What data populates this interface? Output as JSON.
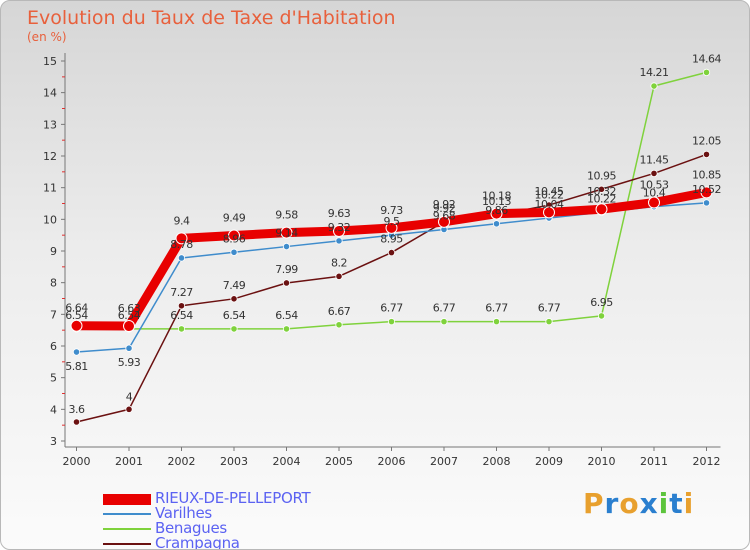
{
  "chart_data": {
    "type": "line",
    "title": "Evolution du Taux de Taxe d'Habitation",
    "subtitle": "(en %)",
    "categories": [
      "2000",
      "2001",
      "2002",
      "2003",
      "2004",
      "2005",
      "2006",
      "2007",
      "2008",
      "2009",
      "2010",
      "2011",
      "2012"
    ],
    "ylim": [
      3,
      15
    ],
    "yticks": [
      "3",
      "4",
      "5",
      "6",
      "7",
      "8",
      "9",
      "10",
      "11",
      "12",
      "13",
      "14",
      "15"
    ],
    "grid": false,
    "legend_position": "bottom-left",
    "series": [
      {
        "name": "RIEUX-DE-PELLEPORT",
        "color": "#e80000",
        "values": [
          6.64,
          6.63,
          9.4,
          9.49,
          9.58,
          9.63,
          9.73,
          9.92,
          10.18,
          10.22,
          10.32,
          10.53,
          10.85
        ],
        "labels": [
          "6.64",
          "6.63",
          "9.4",
          "9.49",
          "9.58",
          "9.63",
          "9.73",
          "9.92",
          "10.18",
          "10.22",
          "10.32",
          "10.53",
          "10.85"
        ]
      },
      {
        "name": "Varilhes",
        "color": "#3f8ccc",
        "values": [
          5.81,
          5.93,
          8.78,
          8.96,
          9.14,
          9.32,
          9.5,
          9.68,
          9.86,
          10.04,
          10.22,
          10.4,
          10.52
        ],
        "labels": [
          "5.81",
          "5.93",
          "8.78",
          "8.96",
          "9.14",
          "9.32",
          "9.5",
          "9.68",
          "9.86",
          "10.04",
          "10.22",
          "10.4",
          "10.52"
        ]
      },
      {
        "name": "Benagues",
        "color": "#7fd23c",
        "values": [
          6.54,
          6.54,
          6.54,
          6.54,
          6.54,
          6.67,
          6.77,
          6.77,
          6.77,
          6.77,
          6.95,
          14.21,
          14.64
        ],
        "labels": [
          "6.54",
          "6.54",
          "6.54",
          "6.54",
          "6.54",
          "6.67",
          "6.77",
          "6.77",
          "6.77",
          "6.77",
          "6.95",
          "14.21",
          "14.64"
        ]
      },
      {
        "name": "Crampagna",
        "color": "#6b1111",
        "values": [
          3.6,
          4,
          7.27,
          7.49,
          7.99,
          8.2,
          8.95,
          9.92,
          10.13,
          10.45,
          10.95,
          11.45,
          12.05
        ],
        "labels": [
          "3.6",
          "4",
          "7.27",
          "7.49",
          "7.99",
          "8.2",
          "8.95",
          "9.92",
          "10.13",
          "10.45",
          "10.95",
          "11.45",
          "12.05"
        ]
      }
    ]
  },
  "logo": {
    "text": "Proxiti",
    "letters": [
      "P",
      "r",
      "o",
      "x",
      "i",
      "t",
      "i"
    ],
    "colors": [
      "#e8a02e",
      "#2a7fcf",
      "#e8a02e",
      "#2a7fcf",
      "#5cc43c",
      "#2a7fcf",
      "#e8a02e"
    ]
  }
}
